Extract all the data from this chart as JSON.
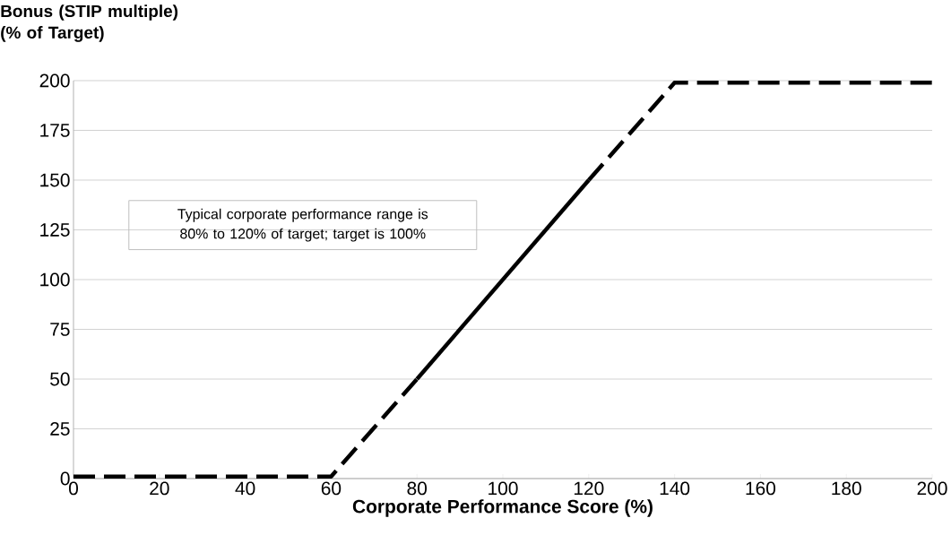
{
  "chart_data": {
    "type": "line",
    "ylabel": "Bonus (STIP multiple) (% of Target)",
    "xlabel": "Corporate Performance Score (%)",
    "annotations": [
      "Typical corporate performance range is 80% to 120% of target; target is 100%"
    ],
    "series": [
      {
        "x": [
          0,
          60,
          80
        ],
        "values": [
          1,
          1,
          50
        ],
        "color": "#000000",
        "line_style": "dashed"
      },
      {
        "x": [
          80,
          120
        ],
        "values": [
          50,
          150
        ],
        "color": "#000000",
        "line_style": "solid"
      },
      {
        "x": [
          120,
          140,
          200
        ],
        "values": [
          150,
          199,
          199
        ],
        "color": "#000000",
        "line_style": "dashed"
      }
    ],
    "xlim": [
      0,
      200
    ],
    "ylim": [
      0,
      200
    ],
    "xticks": [
      0,
      20,
      40,
      60,
      80,
      100,
      120,
      140,
      160,
      180,
      200
    ],
    "yticks": [
      0,
      25,
      50,
      75,
      100,
      125,
      150,
      175,
      200
    ],
    "grid": "y",
    "marker": "none"
  }
}
